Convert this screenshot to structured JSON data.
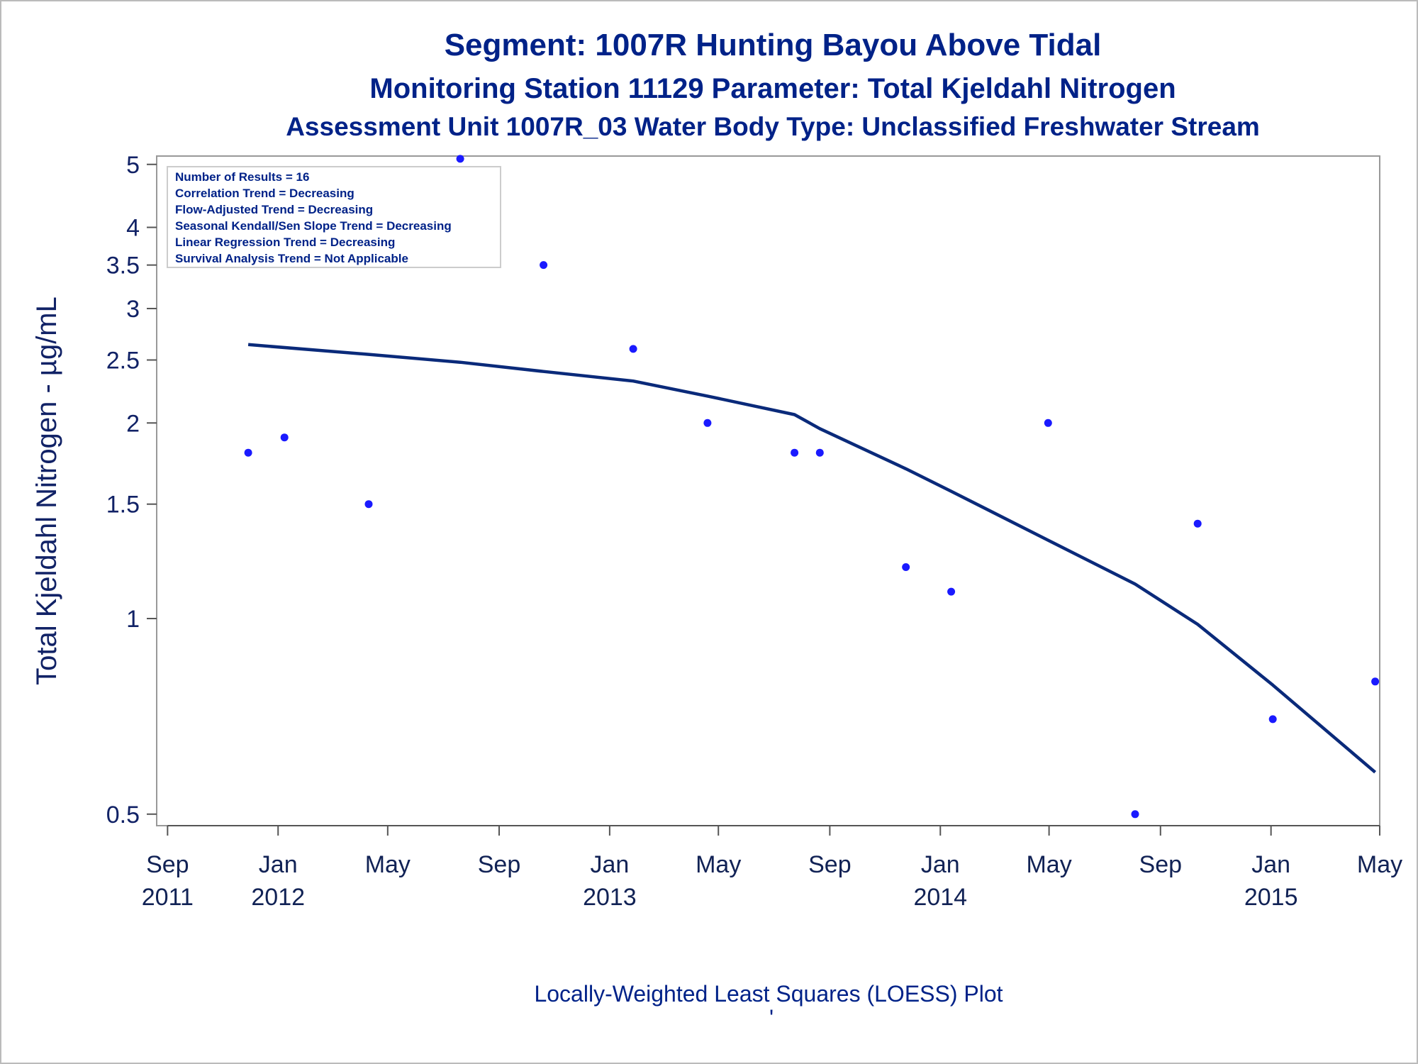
{
  "titles": {
    "line1": "Segment: 1007R  Hunting Bayou Above Tidal",
    "line2": "Monitoring Station 11129 Parameter: Total Kjeldahl Nitrogen",
    "line3": "Assessment Unit 1007R_03   Water Body Type: Unclassified Freshwater Stream"
  },
  "stats_box": [
    "Number of Results = 16",
    "Correlation Trend = Decreasing",
    "Flow-Adjusted Trend = Decreasing",
    "Seasonal Kendall/Sen Slope Trend = Decreasing",
    "Linear Regression Trend = Decreasing",
    "Survival Analysis Trend = Not Applicable"
  ],
  "footer": {
    "caption": "Locally-Weighted Least Squares (LOESS) Plot",
    "mark": "'"
  },
  "colors": {
    "title": "#002288",
    "points": "#1a1aff",
    "loess": "#0a2a7a",
    "frame": "#999999"
  },
  "chart_data": {
    "type": "scatter",
    "title": "Segment: 1007R  Hunting Bayou Above Tidal",
    "xlabel": "",
    "ylabel": "Total Kjeldahl Nitrogen -  µg/mL",
    "y_scale": "log",
    "ylim": [
      0.48,
      5.15
    ],
    "xlim": [
      "2011-08-20",
      "2015-05-01"
    ],
    "grid": false,
    "yticks": [
      {
        "value": 0.5,
        "label": "0.5"
      },
      {
        "value": 1,
        "label": "1"
      },
      {
        "value": 1.5,
        "label": "1.5"
      },
      {
        "value": 2,
        "label": "2"
      },
      {
        "value": 2.5,
        "label": "2.5"
      },
      {
        "value": 3,
        "label": "3"
      },
      {
        "value": 3.5,
        "label": "3.5"
      },
      {
        "value": 4,
        "label": "4"
      },
      {
        "value": 5,
        "label": "5"
      }
    ],
    "xticks": [
      {
        "date": "2011-09-01",
        "month": "Sep",
        "year": "2011"
      },
      {
        "date": "2012-01-01",
        "month": "Jan",
        "year": "2012"
      },
      {
        "date": "2012-05-01",
        "month": "May",
        "year": ""
      },
      {
        "date": "2012-09-01",
        "month": "Sep",
        "year": ""
      },
      {
        "date": "2013-01-01",
        "month": "Jan",
        "year": "2013"
      },
      {
        "date": "2013-05-01",
        "month": "May",
        "year": ""
      },
      {
        "date": "2013-09-01",
        "month": "Sep",
        "year": ""
      },
      {
        "date": "2014-01-01",
        "month": "Jan",
        "year": "2014"
      },
      {
        "date": "2014-05-01",
        "month": "May",
        "year": ""
      },
      {
        "date": "2014-09-01",
        "month": "Sep",
        "year": ""
      },
      {
        "date": "2015-01-01",
        "month": "Jan",
        "year": "2015"
      },
      {
        "date": "2015-05-01",
        "month": "May",
        "year": ""
      }
    ],
    "series": [
      {
        "type": "scatter",
        "points": [
          {
            "x": "2011-11-29",
            "y": 1.8
          },
          {
            "x": "2012-01-08",
            "y": 1.9
          },
          {
            "x": "2012-04-10",
            "y": 1.5
          },
          {
            "x": "2012-07-20",
            "y": 5.1
          },
          {
            "x": "2012-10-20",
            "y": 3.5
          },
          {
            "x": "2013-01-27",
            "y": 2.6
          },
          {
            "x": "2013-04-19",
            "y": 2.0
          },
          {
            "x": "2013-07-24",
            "y": 1.8
          },
          {
            "x": "2013-08-21",
            "y": 1.8
          },
          {
            "x": "2013-11-24",
            "y": 1.2
          },
          {
            "x": "2014-01-13",
            "y": 1.1
          },
          {
            "x": "2014-04-30",
            "y": 2.0
          },
          {
            "x": "2014-08-04",
            "y": 0.5
          },
          {
            "x": "2014-10-12",
            "y": 1.4
          },
          {
            "x": "2015-01-03",
            "y": 0.7
          },
          {
            "x": "2015-04-26",
            "y": 0.8
          }
        ]
      },
      {
        "type": "line",
        "points": [
          {
            "x": "2011-11-29",
            "y": 2.64
          },
          {
            "x": "2012-04-10",
            "y": 2.55
          },
          {
            "x": "2012-07-20",
            "y": 2.48
          },
          {
            "x": "2012-10-20",
            "y": 2.4
          },
          {
            "x": "2013-01-27",
            "y": 2.32
          },
          {
            "x": "2013-04-19",
            "y": 2.2
          },
          {
            "x": "2013-07-24",
            "y": 2.06
          },
          {
            "x": "2013-08-21",
            "y": 1.96
          },
          {
            "x": "2013-11-24",
            "y": 1.7
          },
          {
            "x": "2014-01-13",
            "y": 1.57
          },
          {
            "x": "2014-04-30",
            "y": 1.32
          },
          {
            "x": "2014-08-04",
            "y": 1.13
          },
          {
            "x": "2014-10-12",
            "y": 0.98
          },
          {
            "x": "2015-01-03",
            "y": 0.79
          },
          {
            "x": "2015-04-26",
            "y": 0.58
          }
        ]
      }
    ]
  }
}
